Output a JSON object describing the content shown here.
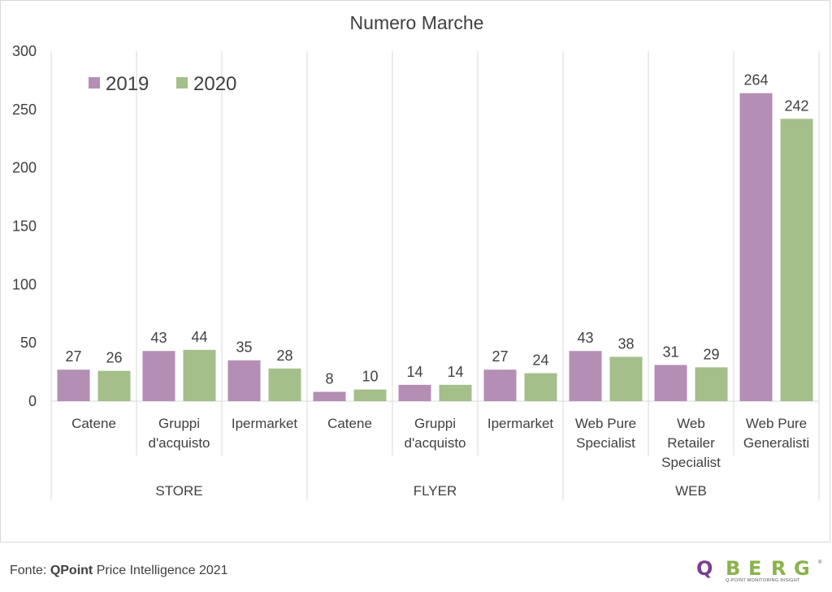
{
  "colors": {
    "series_2019": "#b48eb4",
    "series_2020": "#a4bf8a",
    "logo_purple": "#7b3f8f",
    "logo_green": "#8ab34a"
  },
  "chart_data": {
    "type": "bar",
    "title": "Numero Marche",
    "ylim": [
      0,
      300
    ],
    "yticks": [
      0,
      50,
      100,
      150,
      200,
      250,
      300
    ],
    "grid": false,
    "legend_position": "top-left",
    "groups": [
      {
        "label": "STORE",
        "categories": [
          [
            "Catene"
          ],
          [
            "Gruppi",
            "d'acquisto"
          ],
          [
            "Ipermarket"
          ]
        ]
      },
      {
        "label": "FLYER",
        "categories": [
          [
            "Catene"
          ],
          [
            "Gruppi",
            "d'acquisto"
          ],
          [
            "Ipermarket"
          ]
        ]
      },
      {
        "label": "WEB",
        "categories": [
          [
            "Web Pure",
            "Specialist"
          ],
          [
            "Web",
            "Retailer",
            "Specialist"
          ],
          [
            "Web Pure",
            "Generalisti"
          ]
        ]
      }
    ],
    "series": [
      {
        "name": "2019",
        "values": [
          27,
          43,
          35,
          8,
          14,
          27,
          43,
          31,
          264
        ]
      },
      {
        "name": "2020",
        "values": [
          26,
          44,
          28,
          10,
          14,
          24,
          38,
          29,
          242
        ]
      }
    ]
  },
  "footer": {
    "source_prefix": "Fonte: ",
    "source_strong": "QPoint",
    "source_rest": " Price Intelligence 2021"
  },
  "logo": {
    "text": "QBERG",
    "reg": "®",
    "tagline": "Q-POINT MONITORING INSIGHT"
  }
}
